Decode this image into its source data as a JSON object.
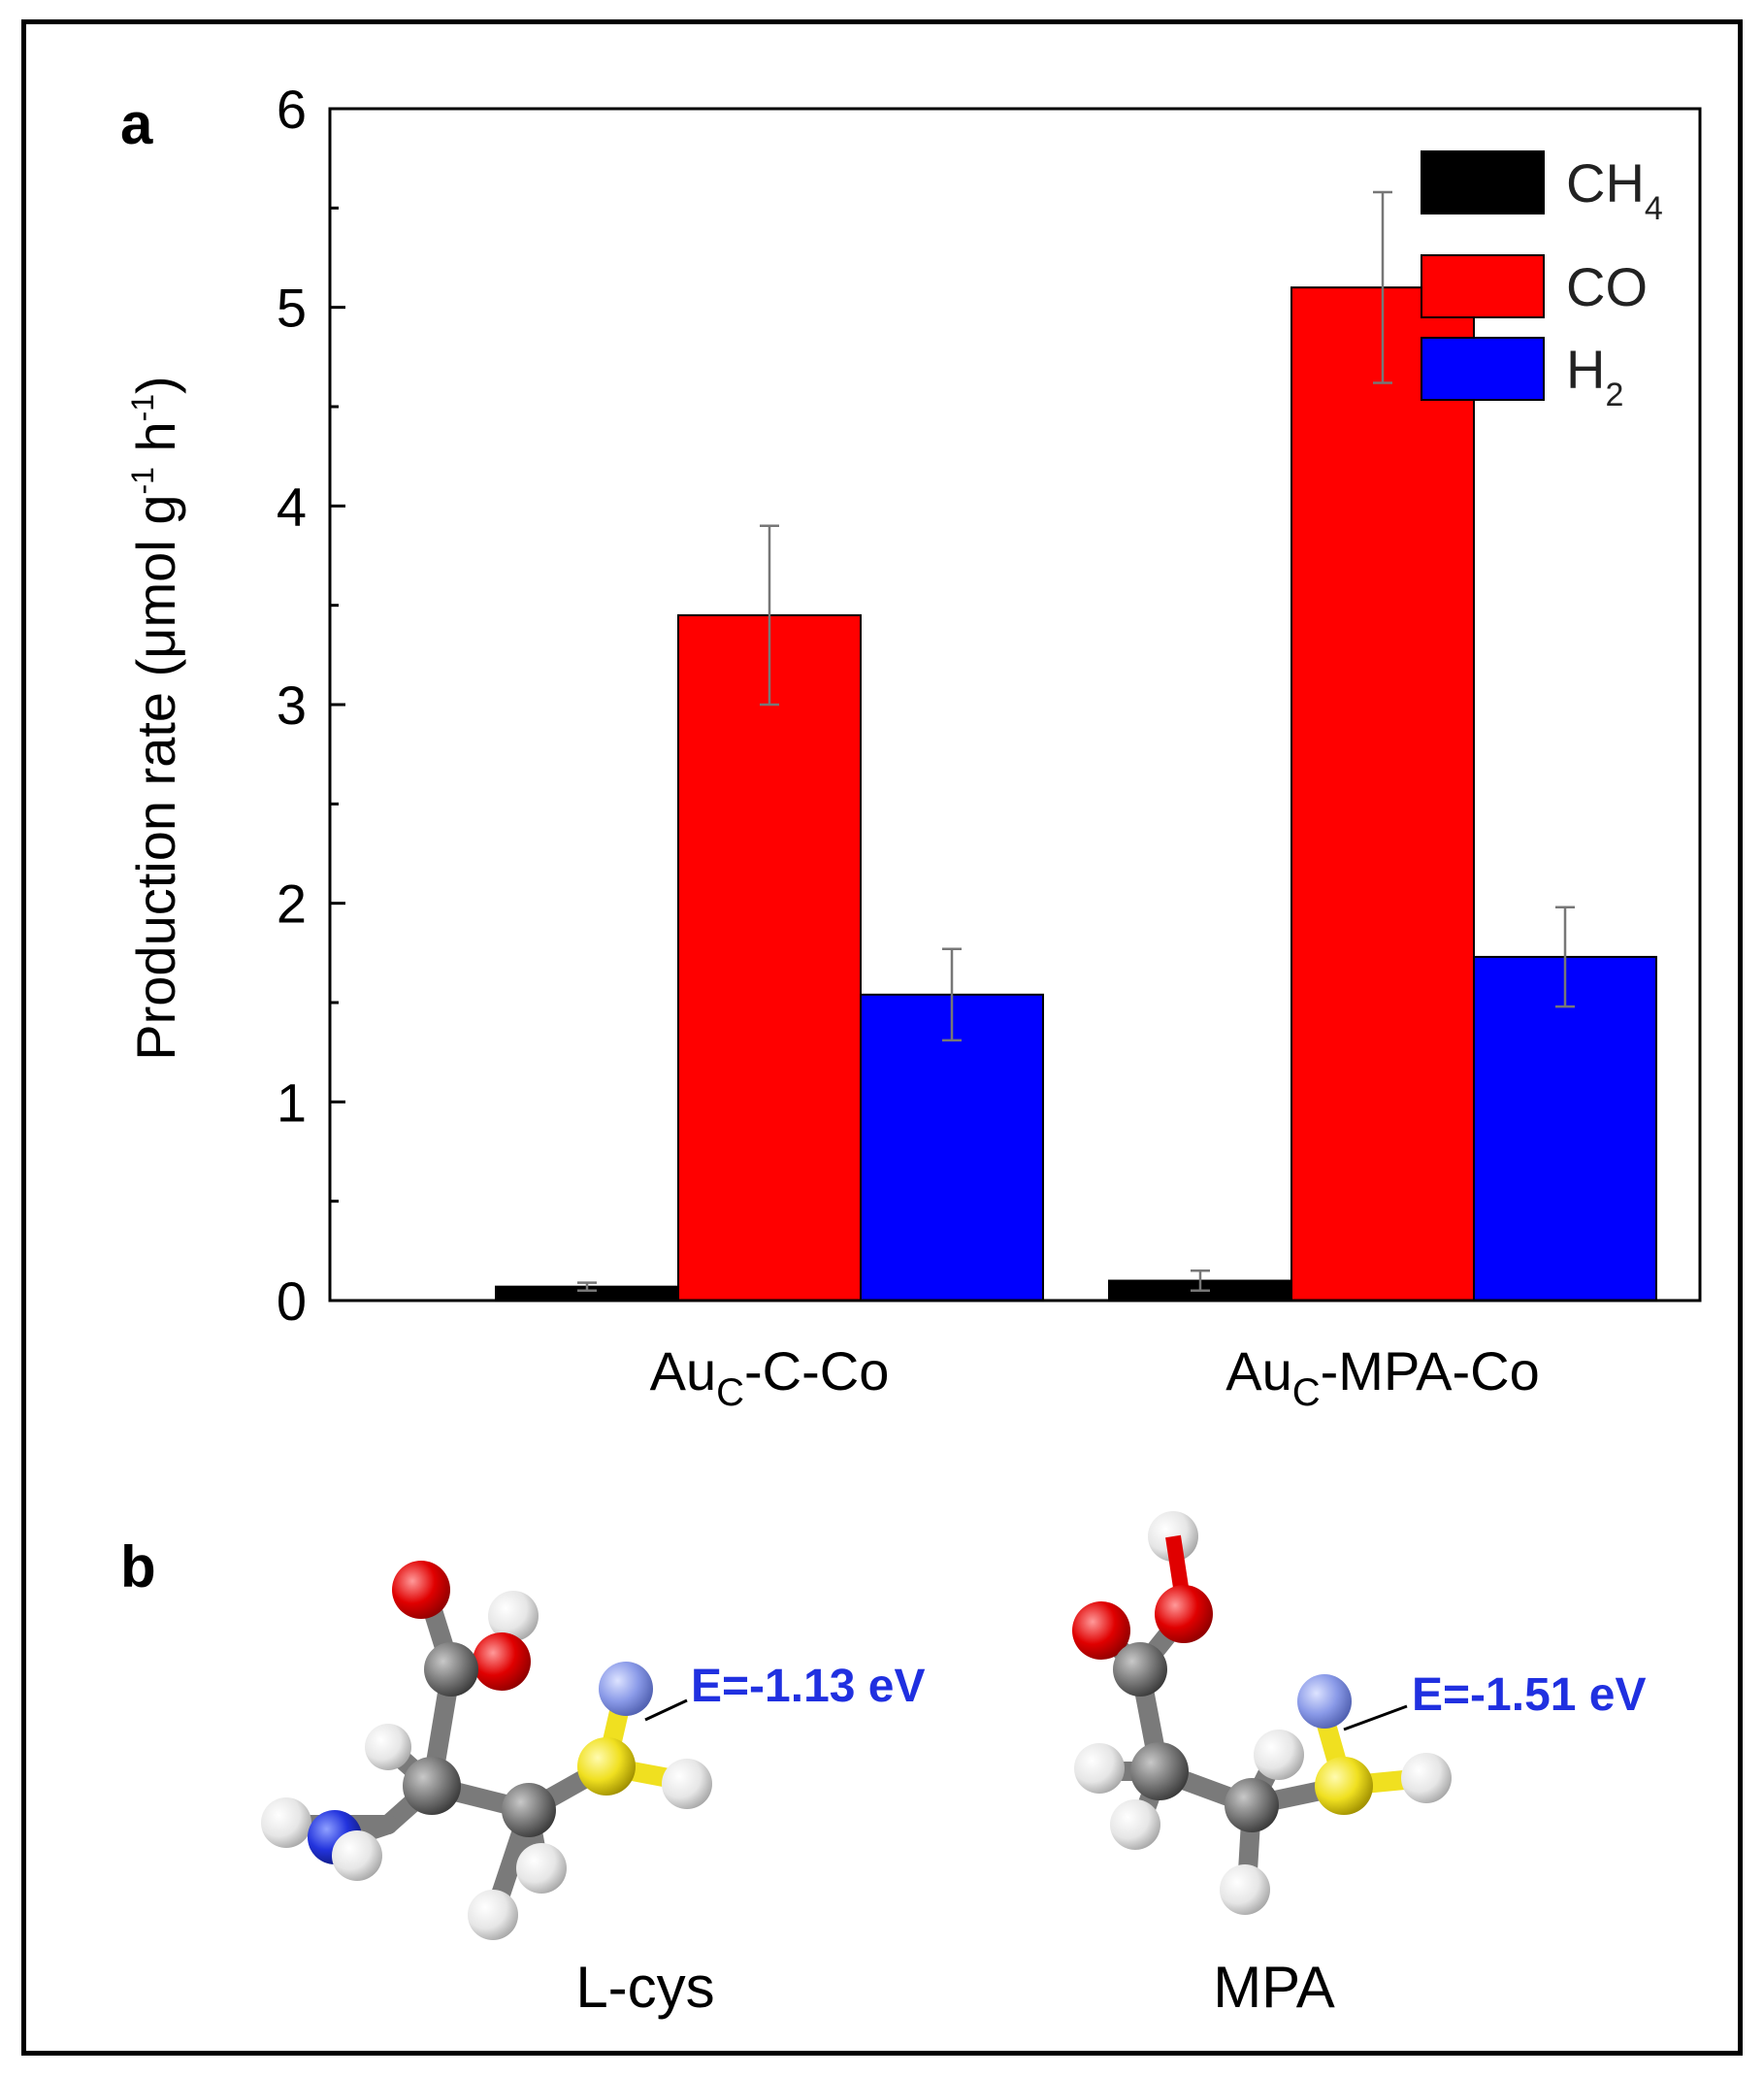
{
  "panel_a": {
    "label": "a"
  },
  "panel_b": {
    "label": "b"
  },
  "chart_data": {
    "type": "bar",
    "ylabel": "Production rate (μmol g-1 h-1)",
    "ylabel_parts": {
      "before": "Production rate (μmol g",
      "sup1": "-1",
      "mid": " h",
      "sup2": "-1",
      "after": ")"
    },
    "ylim": [
      0,
      6
    ],
    "yticks": [
      "0",
      "1",
      "2",
      "3",
      "4",
      "5",
      "6"
    ],
    "categories": [
      {
        "main": "Au",
        "sub": "C",
        "rest": "-C-Co"
      },
      {
        "main": "Au",
        "sub": "C",
        "rest": "-MPA-Co"
      }
    ],
    "series": [
      {
        "name": "CH4",
        "name_main": "CH",
        "name_sub": "4",
        "color": "#000000",
        "values": [
          0.07,
          0.1
        ],
        "errors": [
          0.02,
          0.05
        ]
      },
      {
        "name": "CO",
        "name_main": "CO",
        "name_sub": "",
        "color": "#ff0000",
        "values": [
          3.45,
          5.1
        ],
        "errors": [
          0.45,
          0.48
        ]
      },
      {
        "name": "H2",
        "name_main": "H",
        "name_sub": "2",
        "color": "#0000ff",
        "values": [
          1.54,
          1.73
        ],
        "errors": [
          0.23,
          0.25
        ]
      }
    ],
    "legend_position": "top-right"
  },
  "molecules": [
    {
      "name": "L-cys",
      "energy": "E=-1.13 eV"
    },
    {
      "name": "MPA",
      "energy": "E=-1.51 eV"
    }
  ],
  "colors": {
    "oxygen": "#ff0000",
    "hydrogen": "#ffffff",
    "carbon": "#808080",
    "nitrogen": "#2233dd",
    "sulfur": "#f0e020",
    "energy_text": "#2030e0"
  }
}
